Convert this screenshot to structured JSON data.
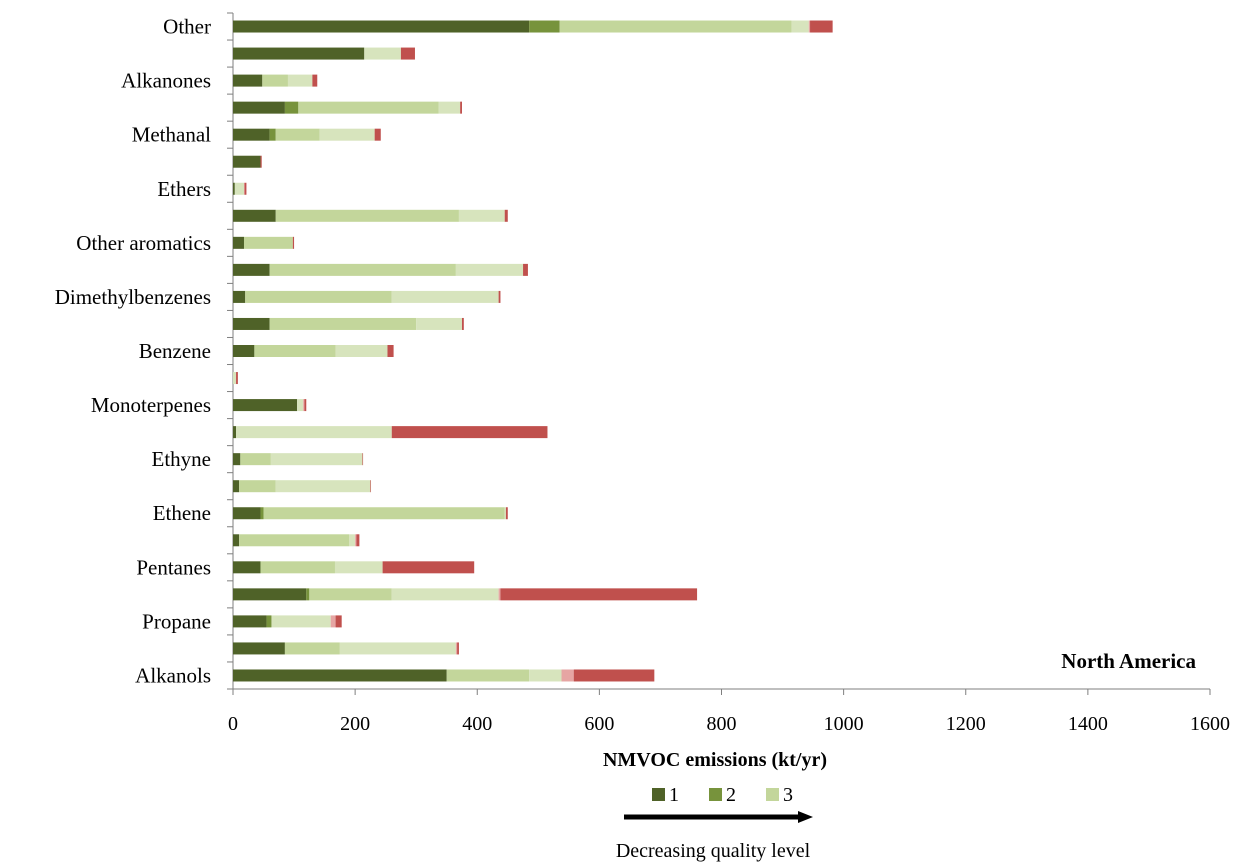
{
  "chart_data": {
    "type": "bar",
    "orientation": "horizontal",
    "stacked": true,
    "annotation": "North America",
    "xlabel": "NMVOC emissions (kt/yr)",
    "xlim": [
      0,
      1600
    ],
    "xticks": [
      0,
      200,
      400,
      600,
      800,
      1000,
      1200,
      1400,
      1600
    ],
    "legend_caption": "Decreasing quality level",
    "categories": [
      "Alkanols",
      "",
      "Propane",
      "",
      "Pentanes",
      "",
      "Ethene",
      "",
      "Ethyne",
      "",
      "Monoterpenes",
      "",
      "Benzene",
      "",
      "Dimethylbenzenes",
      "",
      "Other aromatics",
      "",
      "Ethers",
      "",
      "Methanal",
      "",
      "Alkanones",
      "",
      "Other"
    ],
    "series": [
      {
        "name": "1",
        "color": "#4f6228",
        "values": [
          350,
          85,
          55,
          120,
          45,
          10,
          45,
          10,
          12,
          5,
          105,
          0,
          35,
          60,
          20,
          60,
          18,
          70,
          3,
          45,
          60,
          85,
          48,
          215,
          485
        ]
      },
      {
        "name": "2",
        "color": "#77933c",
        "values": [
          0,
          0,
          8,
          5,
          0,
          0,
          5,
          0,
          0,
          0,
          0,
          0,
          0,
          0,
          0,
          0,
          0,
          0,
          0,
          0,
          10,
          22,
          0,
          0,
          50
        ]
      },
      {
        "name": "3",
        "color": "#c3d69b",
        "values": [
          135,
          90,
          0,
          135,
          122,
          180,
          395,
          60,
          50,
          0,
          0,
          0,
          133,
          240,
          240,
          305,
          80,
          300,
          0,
          0,
          72,
          230,
          42,
          0,
          380
        ]
      },
      {
        "name": "",
        "color": "#d7e4bd",
        "values": [
          53,
          190,
          97,
          175,
          78,
          10,
          2,
          155,
          150,
          255,
          10,
          5,
          85,
          75,
          175,
          110,
          0,
          75,
          15,
          0,
          90,
          35,
          40,
          60,
          28
        ]
      },
      {
        "name": "",
        "color": "#e6a5a3",
        "values": [
          20,
          2,
          8,
          3,
          0,
          2,
          0,
          0,
          0,
          0,
          2,
          0,
          0,
          0,
          0,
          0,
          0,
          0,
          1,
          0,
          0,
          0,
          0,
          0,
          2
        ]
      },
      {
        "name": "",
        "color": "#c0504d",
        "values": [
          132,
          3,
          10,
          322,
          150,
          5,
          3,
          1,
          1,
          255,
          3,
          3,
          10,
          3,
          3,
          8,
          2,
          5,
          3,
          2,
          10,
          3,
          8,
          23,
          37
        ]
      }
    ],
    "legend": [
      {
        "label": "1",
        "color": "#4f6228"
      },
      {
        "label": "2",
        "color": "#77933c"
      },
      {
        "label": "3",
        "color": "#c3d69b"
      }
    ]
  }
}
